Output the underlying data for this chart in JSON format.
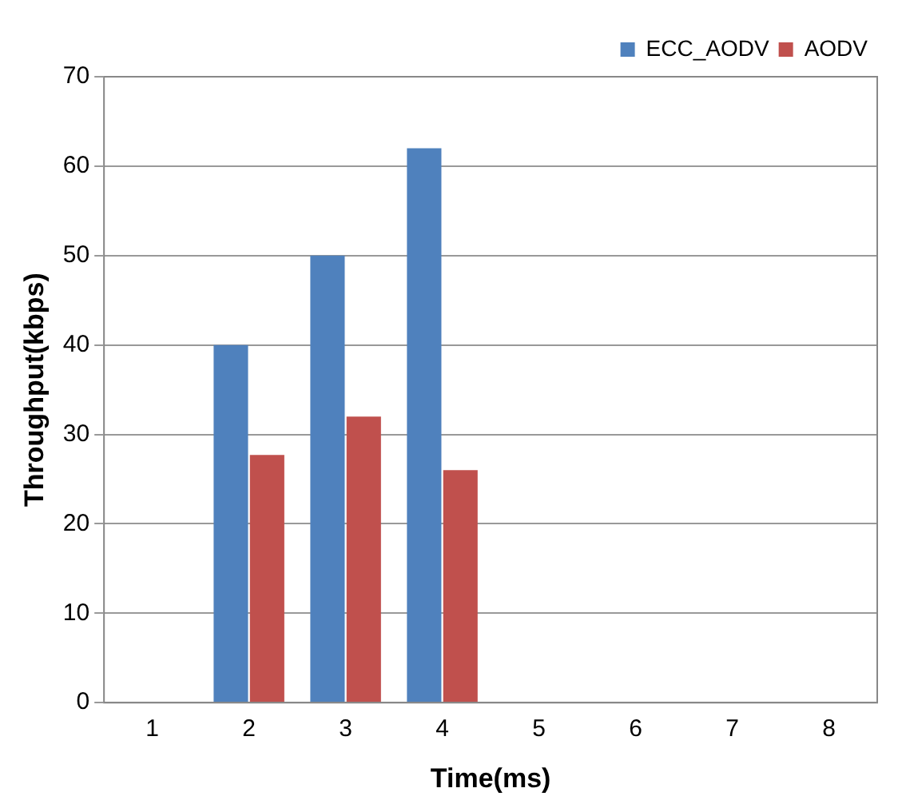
{
  "chart_data": {
    "type": "bar",
    "xlabel": "Time(ms)",
    "ylabel": "Throughput(kbps)",
    "categories": [
      "1",
      "2",
      "3",
      "4",
      "5",
      "6",
      "7",
      "8"
    ],
    "series": [
      {
        "name": "ECC_AODV",
        "color": "#4f81bd",
        "values": [
          null,
          40,
          50,
          62,
          null,
          null,
          null,
          null
        ]
      },
      {
        "name": "AODV",
        "color": "#c0504d",
        "values": [
          null,
          27.7,
          32,
          26,
          null,
          null,
          null,
          null
        ]
      }
    ],
    "ylim": [
      0,
      70
    ],
    "yticks": [
      0,
      10,
      20,
      30,
      40,
      50,
      60,
      70
    ],
    "grid": "y",
    "legend": "top right"
  }
}
